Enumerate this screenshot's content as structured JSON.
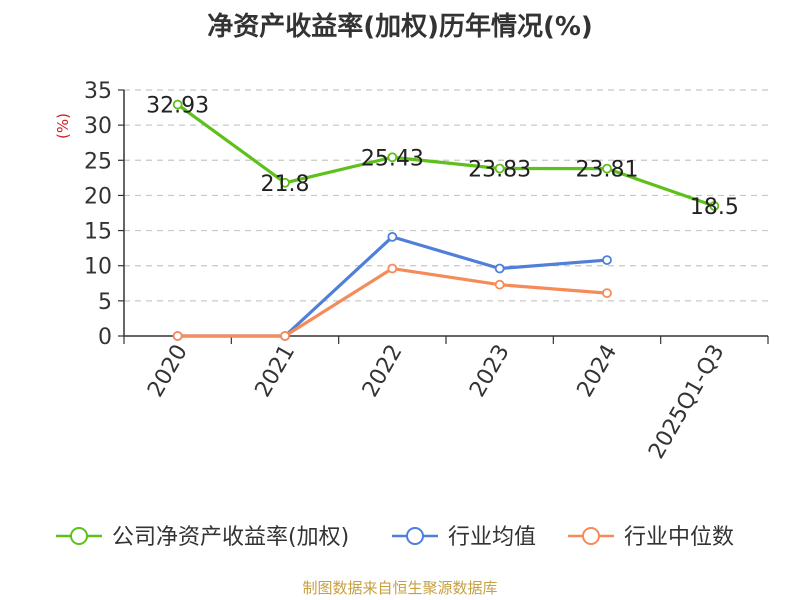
{
  "chart_data": {
    "type": "line",
    "title": "净资产收益率(加权)历年情况(%)",
    "ylabel": "(%)",
    "xlabel": "",
    "ylim": [
      0,
      35
    ],
    "y_ticks": [
      0,
      5,
      10,
      15,
      20,
      25,
      30,
      35
    ],
    "categories": [
      "2020",
      "2021",
      "2022",
      "2023",
      "2024",
      "2025Q1-Q3"
    ],
    "grid": "horizontal dashed",
    "legend_position": "bottom",
    "series": [
      {
        "name": "公司净资产收益率(加权)",
        "color": "#5ec01a",
        "values": [
          32.93,
          21.8,
          25.43,
          23.83,
          23.81,
          18.5
        ],
        "data_labels": [
          "32.93",
          "21.8",
          "25.43",
          "23.83",
          "23.81",
          "18.5"
        ]
      },
      {
        "name": "行业均值",
        "color": "#4f7fd8",
        "values": [
          0,
          0,
          14.1,
          9.6,
          10.8,
          null
        ]
      },
      {
        "name": "行业中位数",
        "color": "#f58b59",
        "values": [
          0,
          0,
          9.6,
          7.3,
          6.1,
          null
        ]
      }
    ]
  },
  "footer": "制图数据来自恒生聚源数据库"
}
